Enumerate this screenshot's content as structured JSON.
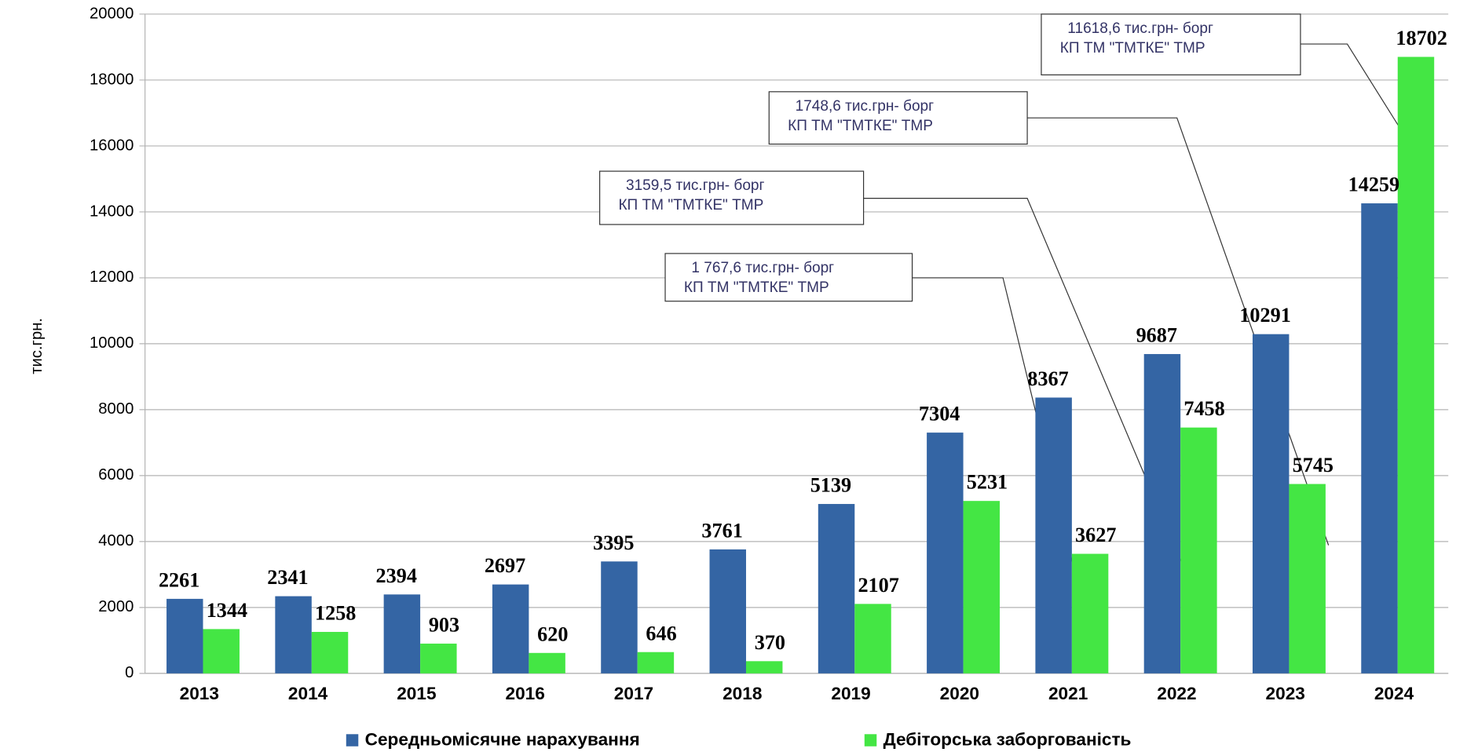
{
  "chart_data": {
    "type": "bar",
    "y_label": "тис.грн.",
    "categories": [
      "2013",
      "2014",
      "2015",
      "2016",
      "2017",
      "2018",
      "2019",
      "2020",
      "2021",
      "2022",
      "2023",
      "2024"
    ],
    "series": [
      {
        "name": "Середньомісячне нарахування",
        "color": "#3465a4",
        "values": [
          2261,
          2341,
          2394,
          2697,
          3395,
          3761,
          5139,
          7304,
          8367,
          9687,
          10291,
          14259
        ]
      },
      {
        "name": "Дебіторська заборгованість",
        "color": "#44e644",
        "values": [
          1344,
          1258,
          903,
          620,
          646,
          370,
          2107,
          5231,
          3627,
          7458,
          5745,
          18702
        ]
      }
    ],
    "ylim": [
      0,
      20000
    ],
    "yticks": [
      0,
      2000,
      4000,
      6000,
      8000,
      10000,
      12000,
      14000,
      16000,
      18000,
      20000
    ],
    "grid": true,
    "legend": "bottom",
    "annotations": [
      {
        "lines": [
          "11618,6 тис.грн- борг",
          "КП ТМ \"ТМТКЕ\" ТМР"
        ]
      },
      {
        "lines": [
          "1748,6 тис.грн- борг",
          "КП ТМ \"ТМТКЕ\" ТМР"
        ]
      },
      {
        "lines": [
          "3159,5  тис.грн- борг",
          "КП ТМ \"ТМТКЕ\" ТМР"
        ]
      },
      {
        "lines": [
          "1 767,6 тис.грн- борг",
          "КП ТМ \"ТМТКЕ\" ТМР"
        ]
      }
    ]
  }
}
